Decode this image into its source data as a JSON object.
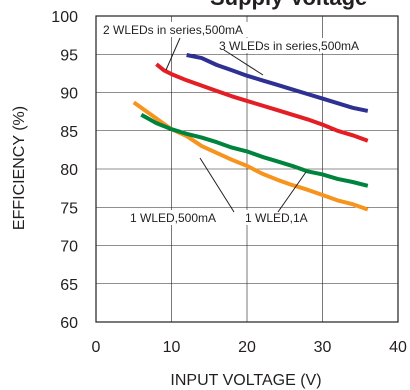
{
  "chart_data": {
    "type": "line",
    "title": "",
    "title_fragment": "Supply Voltage",
    "xlabel": "INPUT VOLTAGE (V)",
    "ylabel": "EFFICIENCY (%)",
    "xlim": [
      0,
      40
    ],
    "ylim": [
      60,
      100
    ],
    "xticks": [
      "0",
      "10",
      "20",
      "30",
      "40"
    ],
    "yticks": [
      "60",
      "65",
      "70",
      "75",
      "80",
      "85",
      "90",
      "95",
      "100"
    ],
    "grid": true,
    "series": [
      {
        "name": "2 WLEDs in series,500mA",
        "color": "#e31e24",
        "x": [
          8,
          9,
          10,
          12,
          14,
          16,
          18,
          20,
          22,
          24,
          26,
          28,
          30,
          32,
          34,
          36
        ],
        "y": [
          93.7,
          92.9,
          92.4,
          91.6,
          90.9,
          90.2,
          89.5,
          88.9,
          88.3,
          87.7,
          87.1,
          86.5,
          85.8,
          85.0,
          84.4,
          83.7
        ]
      },
      {
        "name": "3 WLEDs in series,500mA",
        "color": "#2e3192",
        "x": [
          12,
          14,
          16,
          18,
          20,
          22,
          24,
          26,
          28,
          30,
          32,
          34,
          36
        ],
        "y": [
          94.9,
          94.5,
          93.6,
          92.9,
          92.2,
          91.6,
          91.0,
          90.4,
          89.8,
          89.2,
          88.6,
          88.0,
          87.6
        ]
      },
      {
        "name": "1 WLED,500mA",
        "color": "#f7941d",
        "x": [
          5,
          6,
          8,
          10,
          12,
          14,
          16,
          18,
          20,
          22,
          24,
          26,
          28,
          30,
          32,
          34,
          36
        ],
        "y": [
          88.7,
          88.0,
          86.6,
          85.2,
          84.3,
          83.0,
          82.1,
          81.2,
          80.4,
          79.4,
          78.6,
          77.9,
          77.3,
          76.6,
          75.9,
          75.4,
          74.7
        ]
      },
      {
        "name": "1 WLED,1A",
        "color": "#00843d",
        "x": [
          6,
          8,
          10,
          12,
          14,
          16,
          18,
          20,
          22,
          24,
          26,
          28,
          30,
          32,
          34,
          36
        ],
        "y": [
          87.1,
          86.0,
          85.2,
          84.6,
          84.1,
          83.5,
          82.8,
          82.3,
          81.6,
          81.0,
          80.4,
          79.7,
          79.3,
          78.7,
          78.3,
          77.8
        ]
      }
    ],
    "annotations": [
      {
        "text": "2 WLEDs in series,500mA",
        "series": 0
      },
      {
        "text": "3 WLEDs in series,500mA",
        "series": 1
      },
      {
        "text": "1 WLED,500mA",
        "series": 2
      },
      {
        "text": "1 WLED,1A",
        "series": 3
      }
    ]
  }
}
